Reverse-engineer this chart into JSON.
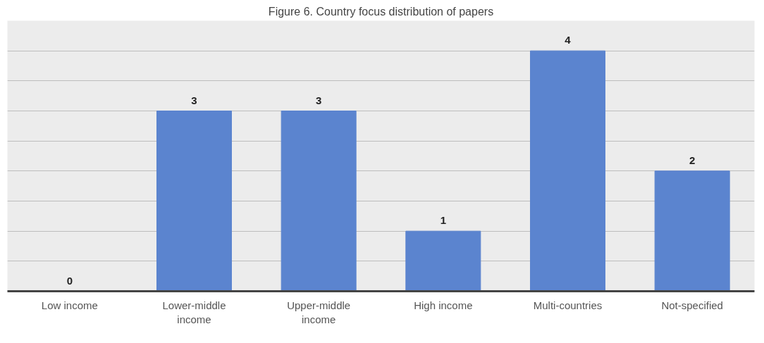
{
  "chart_data": {
    "type": "bar",
    "title": "Figure 6. Country focus distribution of papers",
    "categories": [
      "Low income",
      "Lower-middle income",
      "Upper-middle income",
      "High income",
      "Multi-countries",
      "Not-specified"
    ],
    "values": [
      0,
      3,
      3,
      1,
      4,
      2
    ],
    "color": "#5b84cf",
    "data_labels": true,
    "ylim": [
      0,
      4.5
    ],
    "yticks": [
      {
        "value": 0,
        "label": null
      },
      {
        "value": 0.5,
        "label": null
      },
      {
        "value": 1,
        "label": null
      },
      {
        "value": 1.5,
        "label": null
      },
      {
        "value": 2,
        "label": null
      },
      {
        "value": 2.5,
        "label": null
      },
      {
        "value": 3,
        "label": null
      },
      {
        "value": 3.5,
        "label": null
      },
      {
        "value": 4,
        "label": null
      },
      {
        "value": 4.5,
        "label": null
      }
    ],
    "tick_labels": "x",
    "grid": "y"
  }
}
